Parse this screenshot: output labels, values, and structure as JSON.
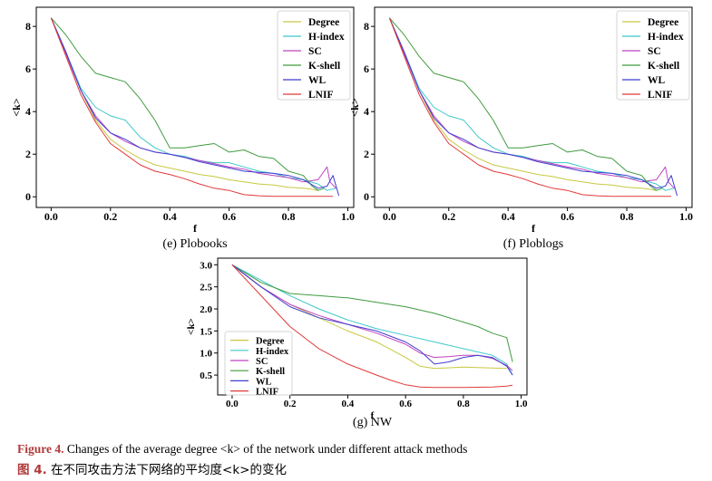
{
  "colors": {
    "Degree": "#c8c843",
    "H-index": "#3fc8c8",
    "SC": "#c043c0",
    "K-shell": "#3f9b3f",
    "WL": "#3f3fd0",
    "LNIF": "#e23a3a",
    "caption_accent": "#b03a3a"
  },
  "caption": {
    "en_prefix": "Figure 4.",
    "en_text": " Changes of the average degree <k> of the network under different attack methods",
    "zh_prefix": "图 4.",
    "zh_text": " 在不同攻击方法下网络的平均度<k>的变化"
  },
  "chart_data": [
    {
      "type": "line",
      "subtitle": "(e) Plobooks",
      "xlabel": "f",
      "ylabel": "<k>",
      "xlim": [
        -0.05,
        1.02
      ],
      "ylim": [
        -0.5,
        8.9
      ],
      "xticks": [
        "0.0",
        "0.2",
        "0.4",
        "0.6",
        "0.8",
        "1.0"
      ],
      "yticks": [
        "0",
        "2",
        "4",
        "6",
        "8"
      ],
      "legend": "top-right",
      "grid": false,
      "series": [
        {
          "name": "Degree",
          "x": [
            0,
            0.05,
            0.1,
            0.15,
            0.2,
            0.25,
            0.3,
            0.35,
            0.4,
            0.45,
            0.5,
            0.55,
            0.6,
            0.65,
            0.7,
            0.75,
            0.8,
            0.85,
            0.88,
            0.9
          ],
          "y": [
            8.4,
            6.8,
            5.0,
            3.6,
            2.7,
            2.2,
            1.8,
            1.5,
            1.35,
            1.2,
            1.05,
            0.95,
            0.8,
            0.7,
            0.6,
            0.55,
            0.45,
            0.4,
            0.35,
            0.3
          ]
        },
        {
          "name": "H-index",
          "x": [
            0,
            0.05,
            0.1,
            0.15,
            0.2,
            0.25,
            0.3,
            0.35,
            0.4,
            0.45,
            0.5,
            0.55,
            0.6,
            0.65,
            0.7,
            0.75,
            0.8,
            0.85,
            0.9,
            0.93,
            0.96
          ],
          "y": [
            8.4,
            6.8,
            5.1,
            4.2,
            3.8,
            3.6,
            2.8,
            2.3,
            2.0,
            1.9,
            1.7,
            1.6,
            1.6,
            1.4,
            1.2,
            1.1,
            0.9,
            0.8,
            0.6,
            0.3,
            0.4
          ]
        },
        {
          "name": "SC",
          "x": [
            0,
            0.05,
            0.1,
            0.15,
            0.2,
            0.25,
            0.3,
            0.35,
            0.4,
            0.45,
            0.5,
            0.55,
            0.6,
            0.65,
            0.7,
            0.75,
            0.8,
            0.85,
            0.9,
            0.93,
            0.94,
            0.96
          ],
          "y": [
            8.4,
            6.7,
            5.0,
            3.8,
            3.0,
            2.6,
            2.3,
            2.1,
            2.0,
            1.85,
            1.7,
            1.55,
            1.4,
            1.3,
            1.1,
            1.0,
            0.9,
            0.7,
            0.8,
            1.4,
            0.7,
            0.4
          ]
        },
        {
          "name": "K-shell",
          "x": [
            0,
            0.05,
            0.1,
            0.15,
            0.2,
            0.25,
            0.3,
            0.35,
            0.4,
            0.45,
            0.5,
            0.55,
            0.6,
            0.65,
            0.7,
            0.75,
            0.8,
            0.85,
            0.88,
            0.9,
            0.92
          ],
          "y": [
            8.4,
            7.6,
            6.6,
            5.8,
            5.6,
            5.4,
            4.6,
            3.6,
            2.3,
            2.3,
            2.4,
            2.5,
            2.1,
            2.2,
            1.9,
            1.8,
            1.2,
            1.0,
            0.5,
            0.3,
            0.4
          ]
        },
        {
          "name": "WL",
          "x": [
            0,
            0.05,
            0.1,
            0.15,
            0.2,
            0.25,
            0.3,
            0.35,
            0.4,
            0.45,
            0.5,
            0.55,
            0.6,
            0.65,
            0.7,
            0.75,
            0.8,
            0.85,
            0.9,
            0.93,
            0.95,
            0.97
          ],
          "y": [
            8.4,
            6.8,
            5.0,
            3.7,
            3.0,
            2.7,
            2.3,
            2.1,
            2.0,
            1.85,
            1.65,
            1.5,
            1.35,
            1.2,
            1.15,
            1.1,
            1.0,
            0.8,
            0.4,
            0.5,
            1.0,
            0.05
          ]
        },
        {
          "name": "LNIF",
          "x": [
            0,
            0.05,
            0.1,
            0.15,
            0.2,
            0.25,
            0.3,
            0.35,
            0.4,
            0.45,
            0.5,
            0.55,
            0.6,
            0.65,
            0.7,
            0.75,
            0.8,
            0.85,
            0.9,
            0.95
          ],
          "y": [
            8.4,
            6.6,
            4.8,
            3.5,
            2.5,
            2.0,
            1.5,
            1.2,
            1.05,
            0.85,
            0.6,
            0.4,
            0.3,
            0.1,
            0.05,
            0.02,
            0.02,
            0.02,
            0.02,
            0.02
          ]
        }
      ]
    },
    {
      "type": "line",
      "subtitle": "(f) Ploblogs",
      "xlabel": "f",
      "ylabel": "<k>",
      "xlim": [
        -0.05,
        1.02
      ],
      "ylim": [
        -0.5,
        8.9
      ],
      "xticks": [
        "0.0",
        "0.2",
        "0.4",
        "0.6",
        "0.8",
        "1.0"
      ],
      "yticks": [
        "0",
        "2",
        "4",
        "6",
        "8"
      ],
      "legend": "top-right",
      "grid": false,
      "series": [
        {
          "name": "Degree",
          "x": [
            0,
            0.05,
            0.1,
            0.15,
            0.2,
            0.25,
            0.3,
            0.35,
            0.4,
            0.45,
            0.5,
            0.55,
            0.6,
            0.65,
            0.7,
            0.75,
            0.8,
            0.85,
            0.88,
            0.9
          ],
          "y": [
            8.4,
            6.8,
            5.0,
            3.6,
            2.7,
            2.2,
            1.8,
            1.5,
            1.35,
            1.2,
            1.05,
            0.95,
            0.8,
            0.7,
            0.6,
            0.55,
            0.45,
            0.4,
            0.35,
            0.3
          ]
        },
        {
          "name": "H-index",
          "x": [
            0,
            0.05,
            0.1,
            0.15,
            0.2,
            0.25,
            0.3,
            0.35,
            0.4,
            0.45,
            0.5,
            0.55,
            0.6,
            0.65,
            0.7,
            0.75,
            0.8,
            0.85,
            0.9,
            0.93,
            0.96
          ],
          "y": [
            8.4,
            6.8,
            5.1,
            4.2,
            3.8,
            3.6,
            2.8,
            2.3,
            2.0,
            1.9,
            1.7,
            1.6,
            1.6,
            1.4,
            1.2,
            1.1,
            0.9,
            0.8,
            0.6,
            0.3,
            0.4
          ]
        },
        {
          "name": "SC",
          "x": [
            0,
            0.05,
            0.1,
            0.15,
            0.2,
            0.25,
            0.3,
            0.35,
            0.4,
            0.45,
            0.5,
            0.55,
            0.6,
            0.65,
            0.7,
            0.75,
            0.8,
            0.85,
            0.9,
            0.93,
            0.94,
            0.96
          ],
          "y": [
            8.4,
            6.7,
            5.0,
            3.8,
            3.0,
            2.6,
            2.3,
            2.1,
            2.0,
            1.85,
            1.7,
            1.55,
            1.4,
            1.3,
            1.1,
            1.0,
            0.9,
            0.7,
            0.8,
            1.4,
            0.7,
            0.4
          ]
        },
        {
          "name": "K-shell",
          "x": [
            0,
            0.05,
            0.1,
            0.15,
            0.2,
            0.25,
            0.3,
            0.35,
            0.4,
            0.45,
            0.5,
            0.55,
            0.6,
            0.65,
            0.7,
            0.75,
            0.8,
            0.85,
            0.88,
            0.9,
            0.92
          ],
          "y": [
            8.4,
            7.6,
            6.6,
            5.8,
            5.6,
            5.4,
            4.6,
            3.6,
            2.3,
            2.3,
            2.4,
            2.5,
            2.1,
            2.2,
            1.9,
            1.8,
            1.2,
            1.0,
            0.5,
            0.3,
            0.4
          ]
        },
        {
          "name": "WL",
          "x": [
            0,
            0.05,
            0.1,
            0.15,
            0.2,
            0.25,
            0.3,
            0.35,
            0.4,
            0.45,
            0.5,
            0.55,
            0.6,
            0.65,
            0.7,
            0.75,
            0.8,
            0.85,
            0.9,
            0.93,
            0.95,
            0.97
          ],
          "y": [
            8.4,
            6.8,
            5.0,
            3.7,
            3.0,
            2.7,
            2.3,
            2.1,
            2.0,
            1.85,
            1.65,
            1.5,
            1.35,
            1.2,
            1.15,
            1.1,
            1.0,
            0.8,
            0.4,
            0.5,
            1.0,
            0.05
          ]
        },
        {
          "name": "LNIF",
          "x": [
            0,
            0.05,
            0.1,
            0.15,
            0.2,
            0.25,
            0.3,
            0.35,
            0.4,
            0.45,
            0.5,
            0.55,
            0.6,
            0.65,
            0.7,
            0.75,
            0.8,
            0.85,
            0.9,
            0.95
          ],
          "y": [
            8.4,
            6.6,
            4.8,
            3.5,
            2.5,
            2.0,
            1.5,
            1.2,
            1.05,
            0.85,
            0.6,
            0.4,
            0.3,
            0.1,
            0.05,
            0.02,
            0.02,
            0.02,
            0.02,
            0.02
          ]
        }
      ]
    },
    {
      "type": "line",
      "subtitle": "(g) NW",
      "xlabel": "f",
      "ylabel": "<k>",
      "xlim": [
        -0.05,
        1.02
      ],
      "ylim": [
        0.05,
        3.15
      ],
      "xticks": [
        "0.0",
        "0.2",
        "0.4",
        "0.6",
        "0.8",
        "1.0"
      ],
      "yticks": [
        "0.5",
        "1.0",
        "1.5",
        "2.0",
        "2.5",
        "3.0"
      ],
      "legend": "bottom-left",
      "grid": false,
      "series": [
        {
          "name": "Degree",
          "x": [
            0,
            0.1,
            0.2,
            0.3,
            0.4,
            0.5,
            0.6,
            0.65,
            0.7,
            0.8,
            0.9,
            0.95
          ],
          "y": [
            3.0,
            2.5,
            2.1,
            1.8,
            1.5,
            1.25,
            0.9,
            0.7,
            0.65,
            0.68,
            0.66,
            0.65
          ]
        },
        {
          "name": "H-index",
          "x": [
            0,
            0.1,
            0.2,
            0.3,
            0.4,
            0.5,
            0.6,
            0.7,
            0.8,
            0.9,
            0.95,
            0.97
          ],
          "y": [
            3.0,
            2.65,
            2.3,
            2.0,
            1.75,
            1.55,
            1.4,
            1.25,
            1.1,
            0.95,
            0.75,
            0.5
          ]
        },
        {
          "name": "SC",
          "x": [
            0,
            0.1,
            0.2,
            0.3,
            0.4,
            0.5,
            0.6,
            0.65,
            0.7,
            0.75,
            0.8,
            0.85,
            0.9,
            0.95,
            0.97
          ],
          "y": [
            3.0,
            2.5,
            2.1,
            1.85,
            1.65,
            1.45,
            1.2,
            1.0,
            0.9,
            0.92,
            0.95,
            0.95,
            0.88,
            0.72,
            0.6
          ]
        },
        {
          "name": "K-shell",
          "x": [
            0,
            0.1,
            0.2,
            0.3,
            0.4,
            0.5,
            0.6,
            0.7,
            0.8,
            0.85,
            0.9,
            0.95,
            0.97
          ],
          "y": [
            3.0,
            2.6,
            2.35,
            2.3,
            2.25,
            2.15,
            2.05,
            1.9,
            1.7,
            1.6,
            1.45,
            1.35,
            0.8
          ]
        },
        {
          "name": "WL",
          "x": [
            0,
            0.1,
            0.2,
            0.3,
            0.4,
            0.5,
            0.6,
            0.65,
            0.7,
            0.75,
            0.8,
            0.85,
            0.9,
            0.95,
            0.97
          ],
          "y": [
            3.0,
            2.5,
            2.05,
            1.8,
            1.65,
            1.5,
            1.25,
            1.05,
            0.75,
            0.8,
            0.9,
            0.95,
            0.9,
            0.7,
            0.5
          ]
        },
        {
          "name": "LNIF",
          "x": [
            0,
            0.1,
            0.2,
            0.3,
            0.4,
            0.5,
            0.55,
            0.6,
            0.65,
            0.7,
            0.8,
            0.9,
            0.95,
            0.97
          ],
          "y": [
            3.0,
            2.3,
            1.6,
            1.1,
            0.75,
            0.5,
            0.38,
            0.28,
            0.23,
            0.22,
            0.22,
            0.23,
            0.25,
            0.27
          ]
        }
      ]
    }
  ]
}
